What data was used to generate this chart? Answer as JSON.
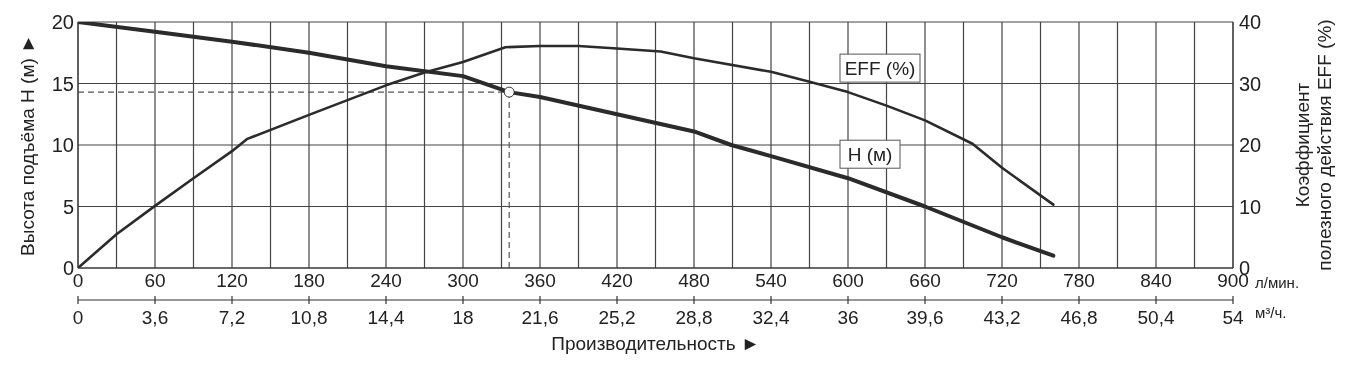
{
  "chart_data": {
    "type": "line",
    "xlabel": "Производительность ►",
    "ylabel": "Высота подъёма H (м) ►",
    "y2label": "Коэффициент\nполезного действия EFF (%)",
    "annotations": [
      "л/мин.",
      "м³/ч."
    ],
    "xlim": [
      0,
      900
    ],
    "xticks": [
      0,
      {
        "value": 30,
        "label": null
      },
      60,
      {
        "value": 90,
        "label": null
      },
      120,
      {
        "value": 150,
        "label": null
      },
      180,
      {
        "value": 210,
        "label": null
      },
      240,
      {
        "value": 270,
        "label": null
      },
      300,
      {
        "value": 330,
        "label": null
      },
      360,
      {
        "value": 390,
        "label": null
      },
      420,
      {
        "value": 450,
        "label": null
      },
      480,
      {
        "value": 510,
        "label": null
      },
      540,
      {
        "value": 570,
        "label": null
      },
      600,
      {
        "value": 630,
        "label": null
      },
      660,
      {
        "value": 690,
        "label": null
      },
      720,
      {
        "value": 750,
        "label": null
      },
      780,
      {
        "value": 810,
        "label": null
      },
      840,
      {
        "value": 870,
        "label": null
      },
      900
    ],
    "x2lim": [
      0,
      54
    ],
    "x2ticks": [
      0,
      {
        "value": 3.6,
        "label": "3,6"
      },
      {
        "value": 7.2,
        "label": "7,2"
      },
      {
        "value": 10.8,
        "label": "10,8"
      },
      {
        "value": 14.4,
        "label": "14,4"
      },
      18,
      {
        "value": 21.6,
        "label": "21,6"
      },
      {
        "value": 25.2,
        "label": "25,2"
      },
      {
        "value": 28.8,
        "label": "28,8"
      },
      {
        "value": 32.4,
        "label": "32,4"
      },
      36,
      {
        "value": 39.6,
        "label": "39,6"
      },
      {
        "value": 43.2,
        "label": "43,2"
      },
      {
        "value": 46.8,
        "label": "46,8"
      },
      {
        "value": 50.4,
        "label": "50,4"
      },
      54
    ],
    "ylim": [
      0,
      20
    ],
    "yticks": [
      0,
      5,
      10,
      15,
      20
    ],
    "y2lim": [
      0,
      40
    ],
    "y2ticks": [
      0,
      10,
      20,
      30,
      40
    ],
    "grid": true,
    "line_style": "solid",
    "series": [
      {
        "name": "H (м)",
        "color": "#2b2b2b",
        "axis": "y",
        "x": [
          0,
          60,
          120,
          180,
          240,
          300,
          336,
          360,
          420,
          480,
          509,
          540,
          600,
          660,
          720,
          760
        ],
        "values": [
          20,
          19.2,
          18.4,
          17.5,
          16.4,
          15.6,
          14.3,
          13.9,
          12.5,
          11.1,
          10,
          9.1,
          7.3,
          5.0,
          2.5,
          1.0
        ]
      },
      {
        "name": "EFF (%)",
        "color": "#2b2b2b",
        "axis": "y2",
        "x": [
          0,
          30,
          60,
          90,
          120,
          132,
          180,
          240,
          270,
          300,
          333,
          360,
          390,
          420,
          454,
          480,
          540,
          570,
          600,
          630,
          660,
          697,
          720,
          760
        ],
        "values": [
          0,
          5.5,
          10.1,
          14.6,
          19.0,
          21.0,
          24.9,
          29.7,
          31.8,
          33.5,
          35.9,
          36.1,
          36.1,
          35.7,
          35.2,
          34.1,
          31.9,
          30.3,
          28.6,
          26.4,
          24.0,
          20.2,
          16.3,
          10.3
        ]
      },
      {
        "type": "scatter",
        "color": "#ffffff",
        "axis": "y",
        "marker": "circle",
        "x": [
          336
        ],
        "values": [
          14.3
        ]
      }
    ],
    "ref_lines": [
      {
        "axis": "x",
        "value": 336,
        "color": "#555555",
        "line_style": "dashed"
      },
      {
        "axis": "y",
        "value": 14.3,
        "color": "#555555",
        "line_style": "dashed"
      }
    ]
  }
}
